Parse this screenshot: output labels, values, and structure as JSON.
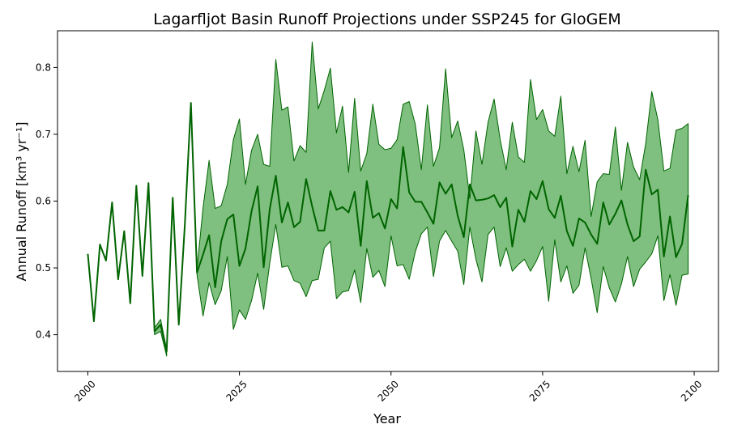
{
  "chart_data": {
    "type": "line",
    "title": "Lagarfljot Basin Runoff Projections under SSP245 for GloGEM",
    "xlabel": "Year",
    "ylabel": "Annual Runoff [km³ yr⁻¹]",
    "xlim": [
      1995,
      2104
    ],
    "ylim": [
      0.345,
      0.855
    ],
    "x_ticks": [
      2000,
      2025,
      2050,
      2075,
      2100
    ],
    "y_ticks": [
      0.4,
      0.5,
      0.6,
      0.7,
      0.8
    ],
    "grid": false,
    "legend": "none",
    "line_color": "#006400",
    "band_color": "#7fbf7f",
    "series": [
      {
        "values": [
          [
            2000,
            0.521
          ],
          [
            2001,
            0.42
          ],
          [
            2002,
            0.535
          ],
          [
            2003,
            0.511
          ],
          [
            2004,
            0.598
          ],
          [
            2005,
            0.483
          ],
          [
            2006,
            0.555
          ],
          [
            2007,
            0.447
          ],
          [
            2008,
            0.623
          ],
          [
            2009,
            0.488
          ],
          [
            2010,
            0.627
          ],
          [
            2011,
            0.405
          ],
          [
            2012,
            0.415
          ],
          [
            2013,
            0.375
          ],
          [
            2014,
            0.605
          ],
          [
            2015,
            0.415
          ],
          [
            2016,
            0.565
          ],
          [
            2017,
            0.747
          ],
          [
            2018,
            0.493
          ],
          [
            2019,
            0.52
          ],
          [
            2020,
            0.549
          ],
          [
            2021,
            0.471
          ],
          [
            2022,
            0.54
          ],
          [
            2023,
            0.573
          ],
          [
            2024,
            0.58
          ],
          [
            2025,
            0.503
          ],
          [
            2026,
            0.529
          ],
          [
            2027,
            0.585
          ],
          [
            2028,
            0.622
          ],
          [
            2029,
            0.501
          ],
          [
            2030,
            0.588
          ],
          [
            2031,
            0.638
          ],
          [
            2032,
            0.568
          ],
          [
            2033,
            0.598
          ],
          [
            2034,
            0.561
          ],
          [
            2035,
            0.569
          ],
          [
            2036,
            0.633
          ],
          [
            2037,
            0.592
          ],
          [
            2038,
            0.556
          ],
          [
            2039,
            0.556
          ],
          [
            2040,
            0.615
          ],
          [
            2041,
            0.587
          ],
          [
            2042,
            0.591
          ],
          [
            2043,
            0.583
          ],
          [
            2044,
            0.614
          ],
          [
            2045,
            0.533
          ],
          [
            2046,
            0.63
          ],
          [
            2047,
            0.575
          ],
          [
            2048,
            0.582
          ],
          [
            2049,
            0.559
          ],
          [
            2050,
            0.603
          ],
          [
            2051,
            0.589
          ],
          [
            2052,
            0.681
          ],
          [
            2053,
            0.613
          ],
          [
            2054,
            0.599
          ],
          [
            2055,
            0.599
          ],
          [
            2056,
            0.583
          ],
          [
            2057,
            0.566
          ],
          [
            2058,
            0.628
          ],
          [
            2059,
            0.611
          ],
          [
            2060,
            0.625
          ],
          [
            2061,
            0.578
          ],
          [
            2062,
            0.546
          ],
          [
            2063,
            0.625
          ],
          [
            2064,
            0.601
          ],
          [
            2065,
            0.602
          ],
          [
            2066,
            0.604
          ],
          [
            2067,
            0.609
          ],
          [
            2068,
            0.591
          ],
          [
            2069,
            0.605
          ],
          [
            2070,
            0.532
          ],
          [
            2071,
            0.587
          ],
          [
            2072,
            0.569
          ],
          [
            2073,
            0.615
          ],
          [
            2074,
            0.603
          ],
          [
            2075,
            0.63
          ],
          [
            2076,
            0.588
          ],
          [
            2077,
            0.575
          ],
          [
            2078,
            0.608
          ],
          [
            2079,
            0.555
          ],
          [
            2080,
            0.533
          ],
          [
            2081,
            0.574
          ],
          [
            2082,
            0.568
          ],
          [
            2083,
            0.55
          ],
          [
            2084,
            0.536
          ],
          [
            2085,
            0.598
          ],
          [
            2086,
            0.565
          ],
          [
            2087,
            0.581
          ],
          [
            2088,
            0.601
          ],
          [
            2089,
            0.565
          ],
          [
            2090,
            0.54
          ],
          [
            2091,
            0.547
          ],
          [
            2092,
            0.647
          ],
          [
            2093,
            0.61
          ],
          [
            2094,
            0.617
          ],
          [
            2095,
            0.517
          ],
          [
            2096,
            0.577
          ],
          [
            2097,
            0.516
          ],
          [
            2098,
            0.536
          ],
          [
            2099,
            0.609
          ]
        ]
      }
    ],
    "bands": [
      {
        "upper": [
          [
            2011,
            0.41
          ],
          [
            2012,
            0.423
          ],
          [
            2013,
            0.378
          ],
          [
            2018,
            0.498
          ],
          [
            2019,
            0.59
          ],
          [
            2020,
            0.661
          ],
          [
            2021,
            0.589
          ],
          [
            2022,
            0.593
          ],
          [
            2023,
            0.625
          ],
          [
            2024,
            0.692
          ],
          [
            2025,
            0.723
          ],
          [
            2026,
            0.625
          ],
          [
            2027,
            0.676
          ],
          [
            2028,
            0.7
          ],
          [
            2029,
            0.655
          ],
          [
            2030,
            0.652
          ],
          [
            2031,
            0.812
          ],
          [
            2032,
            0.736
          ],
          [
            2033,
            0.741
          ],
          [
            2034,
            0.66
          ],
          [
            2035,
            0.683
          ],
          [
            2036,
            0.673
          ],
          [
            2037,
            0.838
          ],
          [
            2038,
            0.738
          ],
          [
            2039,
            0.766
          ],
          [
            2040,
            0.799
          ],
          [
            2041,
            0.702
          ],
          [
            2042,
            0.742
          ],
          [
            2043,
            0.643
          ],
          [
            2044,
            0.754
          ],
          [
            2045,
            0.645
          ],
          [
            2046,
            0.671
          ],
          [
            2047,
            0.745
          ],
          [
            2048,
            0.685
          ],
          [
            2049,
            0.677
          ],
          [
            2050,
            0.679
          ],
          [
            2051,
            0.692
          ],
          [
            2052,
            0.745
          ],
          [
            2053,
            0.749
          ],
          [
            2054,
            0.715
          ],
          [
            2055,
            0.647
          ],
          [
            2056,
            0.744
          ],
          [
            2057,
            0.652
          ],
          [
            2058,
            0.68
          ],
          [
            2059,
            0.798
          ],
          [
            2060,
            0.695
          ],
          [
            2061,
            0.72
          ],
          [
            2062,
            0.677
          ],
          [
            2063,
            0.604
          ],
          [
            2064,
            0.705
          ],
          [
            2065,
            0.655
          ],
          [
            2066,
            0.718
          ],
          [
            2067,
            0.753
          ],
          [
            2068,
            0.692
          ],
          [
            2069,
            0.647
          ],
          [
            2070,
            0.718
          ],
          [
            2071,
            0.666
          ],
          [
            2072,
            0.658
          ],
          [
            2073,
            0.782
          ],
          [
            2074,
            0.722
          ],
          [
            2075,
            0.737
          ],
          [
            2076,
            0.705
          ],
          [
            2077,
            0.697
          ],
          [
            2078,
            0.757
          ],
          [
            2079,
            0.641
          ],
          [
            2080,
            0.682
          ],
          [
            2081,
            0.644
          ],
          [
            2082,
            0.691
          ],
          [
            2083,
            0.577
          ],
          [
            2084,
            0.629
          ],
          [
            2085,
            0.641
          ],
          [
            2086,
            0.64
          ],
          [
            2087,
            0.711
          ],
          [
            2088,
            0.616
          ],
          [
            2089,
            0.688
          ],
          [
            2090,
            0.651
          ],
          [
            2091,
            0.632
          ],
          [
            2092,
            0.686
          ],
          [
            2093,
            0.764
          ],
          [
            2094,
            0.722
          ],
          [
            2095,
            0.645
          ],
          [
            2096,
            0.649
          ],
          [
            2097,
            0.706
          ],
          [
            2098,
            0.709
          ],
          [
            2099,
            0.716
          ]
        ],
        "lower": [
          [
            2011,
            0.4
          ],
          [
            2012,
            0.405
          ],
          [
            2013,
            0.368
          ],
          [
            2018,
            0.49
          ],
          [
            2019,
            0.428
          ],
          [
            2020,
            0.478
          ],
          [
            2021,
            0.445
          ],
          [
            2022,
            0.466
          ],
          [
            2023,
            0.517
          ],
          [
            2024,
            0.408
          ],
          [
            2025,
            0.437
          ],
          [
            2026,
            0.423
          ],
          [
            2027,
            0.451
          ],
          [
            2028,
            0.492
          ],
          [
            2029,
            0.438
          ],
          [
            2030,
            0.507
          ],
          [
            2031,
            0.565
          ],
          [
            2032,
            0.501
          ],
          [
            2033,
            0.503
          ],
          [
            2034,
            0.481
          ],
          [
            2035,
            0.477
          ],
          [
            2036,
            0.457
          ],
          [
            2037,
            0.481
          ],
          [
            2038,
            0.483
          ],
          [
            2039,
            0.53
          ],
          [
            2040,
            0.54
          ],
          [
            2041,
            0.454
          ],
          [
            2042,
            0.464
          ],
          [
            2043,
            0.466
          ],
          [
            2044,
            0.497
          ],
          [
            2045,
            0.448
          ],
          [
            2046,
            0.529
          ],
          [
            2047,
            0.486
          ],
          [
            2048,
            0.496
          ],
          [
            2049,
            0.472
          ],
          [
            2050,
            0.548
          ],
          [
            2051,
            0.503
          ],
          [
            2052,
            0.505
          ],
          [
            2053,
            0.483
          ],
          [
            2054,
            0.524
          ],
          [
            2055,
            0.551
          ],
          [
            2056,
            0.561
          ],
          [
            2057,
            0.487
          ],
          [
            2058,
            0.54
          ],
          [
            2059,
            0.556
          ],
          [
            2060,
            0.54
          ],
          [
            2061,
            0.525
          ],
          [
            2062,
            0.475
          ],
          [
            2063,
            0.561
          ],
          [
            2064,
            0.513
          ],
          [
            2065,
            0.479
          ],
          [
            2066,
            0.55
          ],
          [
            2067,
            0.561
          ],
          [
            2068,
            0.502
          ],
          [
            2069,
            0.53
          ],
          [
            2070,
            0.495
          ],
          [
            2071,
            0.505
          ],
          [
            2072,
            0.513
          ],
          [
            2073,
            0.495
          ],
          [
            2074,
            0.511
          ],
          [
            2075,
            0.532
          ],
          [
            2076,
            0.45
          ],
          [
            2077,
            0.542
          ],
          [
            2078,
            0.479
          ],
          [
            2079,
            0.503
          ],
          [
            2080,
            0.462
          ],
          [
            2081,
            0.474
          ],
          [
            2082,
            0.53
          ],
          [
            2083,
            0.484
          ],
          [
            2084,
            0.433
          ],
          [
            2085,
            0.502
          ],
          [
            2086,
            0.47
          ],
          [
            2087,
            0.449
          ],
          [
            2088,
            0.476
          ],
          [
            2089,
            0.517
          ],
          [
            2090,
            0.472
          ],
          [
            2091,
            0.498
          ],
          [
            2092,
            0.509
          ],
          [
            2093,
            0.521
          ],
          [
            2094,
            0.548
          ],
          [
            2095,
            0.451
          ],
          [
            2096,
            0.49
          ],
          [
            2097,
            0.444
          ],
          [
            2098,
            0.489
          ],
          [
            2099,
            0.491
          ]
        ]
      }
    ]
  }
}
